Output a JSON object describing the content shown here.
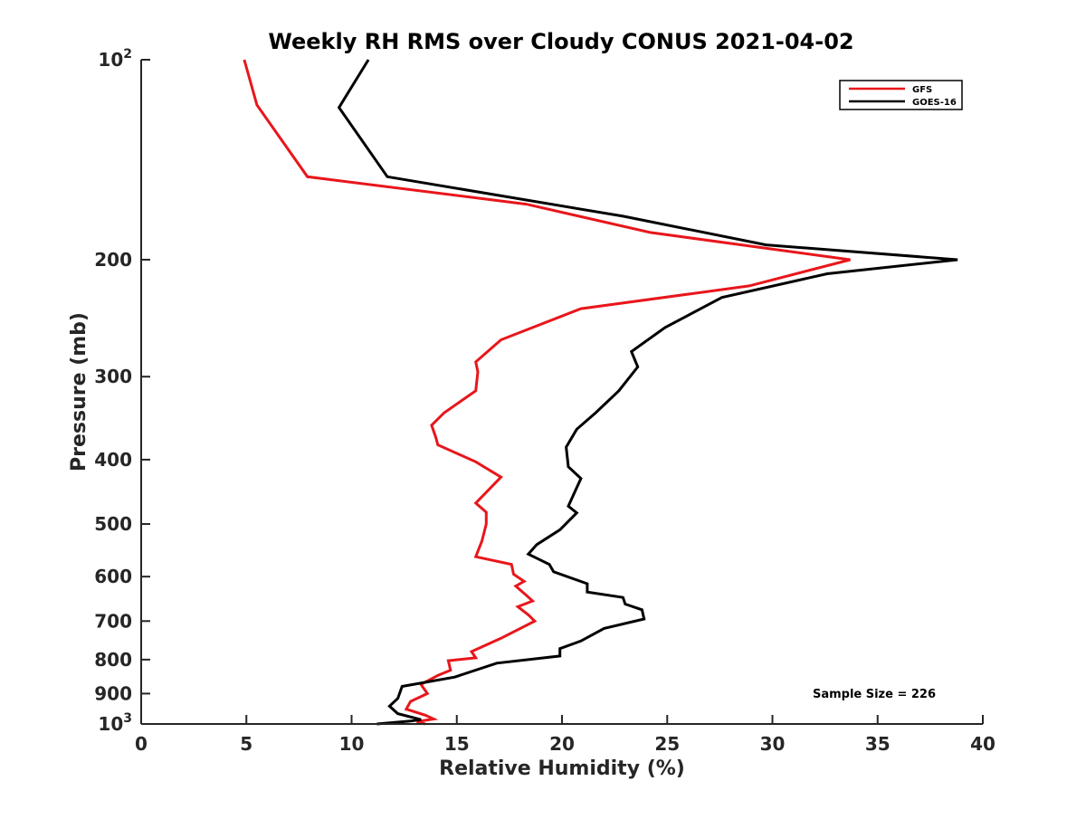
{
  "chart_data": {
    "type": "line",
    "title": "Weekly RH RMS over Cloudy CONUS 2021-04-02",
    "xlabel": "Relative Humidity (%)",
    "ylabel": "Pressure (mb)",
    "xlim": [
      0,
      40
    ],
    "ylim": [
      1000,
      100
    ],
    "y_scale": "log",
    "y_reversed": true,
    "x_ticks": [
      0,
      5,
      10,
      15,
      20,
      25,
      30,
      35,
      40
    ],
    "x_tick_labels": [
      "0",
      "5",
      "10",
      "15",
      "20",
      "25",
      "30",
      "35",
      "40"
    ],
    "y_ticks": [
      100,
      200,
      300,
      400,
      500,
      600,
      700,
      800,
      900,
      1000
    ],
    "y_tick_labels": [
      {
        "base": "10",
        "sup": "2"
      },
      {
        "base": "200",
        "sup": ""
      },
      {
        "base": "300",
        "sup": ""
      },
      {
        "base": "400",
        "sup": ""
      },
      {
        "base": "500",
        "sup": ""
      },
      {
        "base": "600",
        "sup": ""
      },
      {
        "base": "700",
        "sup": ""
      },
      {
        "base": "800",
        "sup": ""
      },
      {
        "base": "900",
        "sup": ""
      },
      {
        "base": "10",
        "sup": "3"
      }
    ],
    "grid": false,
    "legend_position": "top-right",
    "annotation": "Sample Size = 226",
    "series": [
      {
        "name": "GFS",
        "color": "#e8161b",
        "points": [
          [
            4.9,
            100
          ],
          [
            5.5,
            117
          ],
          [
            7.9,
            150
          ],
          [
            18.3,
            165
          ],
          [
            24.2,
            182
          ],
          [
            33.7,
            200
          ],
          [
            28.9,
            219
          ],
          [
            20.9,
            237
          ],
          [
            17.1,
            264
          ],
          [
            15.9,
            285
          ],
          [
            16.0,
            295
          ],
          [
            15.9,
            315
          ],
          [
            14.4,
            340
          ],
          [
            13.8,
            355
          ],
          [
            14.0,
            370
          ],
          [
            14.1,
            380
          ],
          [
            15.9,
            403
          ],
          [
            17.1,
            425
          ],
          [
            15.9,
            465
          ],
          [
            16.4,
            480
          ],
          [
            16.4,
            500
          ],
          [
            16.2,
            530
          ],
          [
            15.9,
            560
          ],
          [
            17.6,
            575
          ],
          [
            17.7,
            595
          ],
          [
            18.2,
            610
          ],
          [
            17.8,
            620
          ],
          [
            18.3,
            640
          ],
          [
            18.6,
            653
          ],
          [
            17.9,
            666
          ],
          [
            18.4,
            685
          ],
          [
            18.7,
            700
          ],
          [
            17.1,
            743
          ],
          [
            15.7,
            778
          ],
          [
            15.9,
            795
          ],
          [
            14.6,
            803
          ],
          [
            14.7,
            830
          ],
          [
            14.1,
            845
          ],
          [
            13.3,
            872
          ],
          [
            13.6,
            900
          ],
          [
            12.8,
            925
          ],
          [
            12.6,
            950
          ],
          [
            13.5,
            970
          ],
          [
            13.9,
            983
          ],
          [
            13.1,
            992
          ],
          [
            13.5,
            1000
          ]
        ]
      },
      {
        "name": "GOES-16",
        "color": "#000000",
        "points": [
          [
            10.8,
            100
          ],
          [
            9.4,
            118
          ],
          [
            11.7,
            150
          ],
          [
            22.9,
            172
          ],
          [
            29.7,
            190
          ],
          [
            38.8,
            200
          ],
          [
            32.6,
            210
          ],
          [
            27.6,
            228
          ],
          [
            24.9,
            253
          ],
          [
            23.3,
            275
          ],
          [
            23.6,
            290
          ],
          [
            22.7,
            315
          ],
          [
            21.6,
            340
          ],
          [
            20.7,
            360
          ],
          [
            20.2,
            383
          ],
          [
            20.3,
            410
          ],
          [
            20.9,
            427
          ],
          [
            20.3,
            470
          ],
          [
            20.7,
            481
          ],
          [
            19.9,
            510
          ],
          [
            18.8,
            537
          ],
          [
            18.4,
            555
          ],
          [
            19.4,
            575
          ],
          [
            19.6,
            590
          ],
          [
            21.2,
            615
          ],
          [
            21.2,
            633
          ],
          [
            22.9,
            645
          ],
          [
            23.0,
            660
          ],
          [
            23.8,
            673
          ],
          [
            23.9,
            695
          ],
          [
            22.0,
            718
          ],
          [
            20.9,
            750
          ],
          [
            19.9,
            770
          ],
          [
            19.9,
            790
          ],
          [
            16.9,
            810
          ],
          [
            14.9,
            850
          ],
          [
            12.4,
            878
          ],
          [
            12.2,
            915
          ],
          [
            11.8,
            940
          ],
          [
            12.2,
            965
          ],
          [
            13.3,
            985
          ],
          [
            12.8,
            990
          ],
          [
            11.2,
            1000
          ]
        ]
      }
    ]
  }
}
